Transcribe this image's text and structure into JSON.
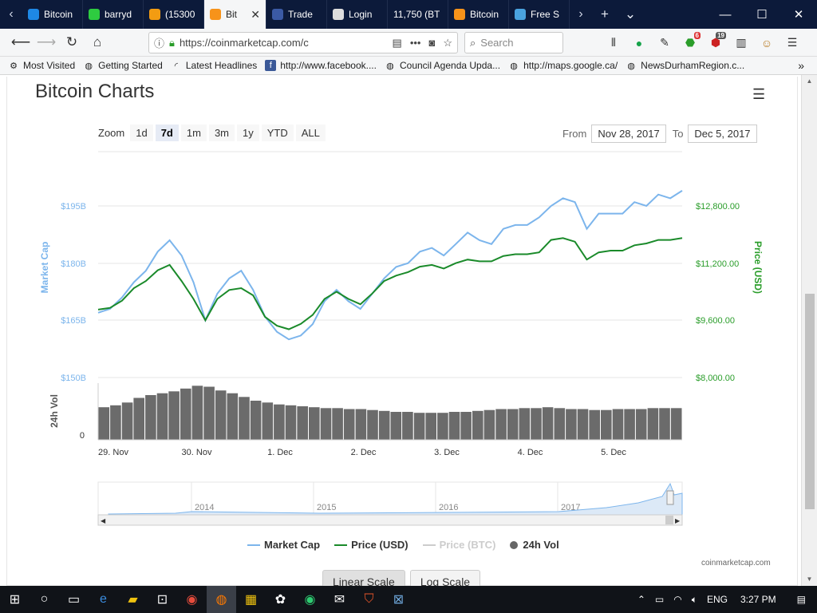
{
  "tabs": [
    {
      "label": "Bitcoin",
      "icon": "feather-icon",
      "color": "#1e88e5"
    },
    {
      "label": "barryd",
      "icon": "green-dot-icon",
      "color": "#2ecc40"
    },
    {
      "label": "(15300",
      "icon": "chat-icon",
      "color": "#f39c12"
    },
    {
      "label": "Bit",
      "icon": "bitcoin-icon",
      "color": "#f7931a",
      "active": true
    },
    {
      "label": "Trade",
      "icon": "bitcoin-b-icon",
      "color": "#3b5aa5"
    },
    {
      "label": "Login",
      "icon": "lock-icon",
      "color": "#ddd"
    },
    {
      "label": "11,750 (BT",
      "icon": "",
      "color": ""
    },
    {
      "label": "Bitcoin",
      "icon": "chart-icon",
      "color": "#f7931a"
    },
    {
      "label": "Free S",
      "icon": "graph-icon",
      "color": "#4aa3df"
    }
  ],
  "nav": {
    "url": "https://coinmarketcap.com/c",
    "search_placeholder": "Search",
    "badge_red": "6",
    "badge_abp": "19"
  },
  "bookmarks": [
    {
      "label": "Most Visited",
      "icon": "gear-icon"
    },
    {
      "label": "Getting Started",
      "icon": "globe-icon"
    },
    {
      "label": "Latest Headlines",
      "icon": "rss-icon"
    },
    {
      "label": "http://www.facebook....",
      "icon": "facebook-icon"
    },
    {
      "label": "Council Agenda Upda...",
      "icon": "globe-icon"
    },
    {
      "label": "http://maps.google.ca/",
      "icon": "globe-icon"
    },
    {
      "label": "NewsDurhamRegion.c...",
      "icon": "globe-icon"
    }
  ],
  "page": {
    "title": "Bitcoin Charts",
    "zoom_label": "Zoom",
    "zoom_options": [
      "1d",
      "7d",
      "1m",
      "3m",
      "1y",
      "YTD",
      "ALL"
    ],
    "zoom_selected": "7d",
    "from_label": "From",
    "from_value": "Nov 28, 2017",
    "to_label": "To",
    "to_value": "Dec 5, 2017",
    "credit": "coinmarketcap.com",
    "scale_buttons": [
      "Linear Scale",
      "Log Scale"
    ]
  },
  "chart_data": {
    "type": "line",
    "left_axis": {
      "label": "Market Cap",
      "ticks": [
        "$195B",
        "$180B",
        "$165B",
        "$150B"
      ],
      "color": "#7cb5ec"
    },
    "right_axis": {
      "label": "Price (USD)",
      "ticks": [
        "$12,800.00",
        "$11,200.00",
        "$9,600.00",
        "$8,000.00"
      ],
      "color": "#2a9d2a"
    },
    "volume_axis": {
      "label": "24h Vol",
      "ticks": [
        "0"
      ]
    },
    "x_ticks": [
      "29. Nov",
      "30. Nov",
      "1. Dec",
      "2. Dec",
      "3. Dec",
      "4. Dec",
      "5. Dec"
    ],
    "navigator_ticks": [
      "2014",
      "2015",
      "2016",
      "2017"
    ],
    "series": [
      {
        "name": "Market Cap",
        "color": "#7cb5ec",
        "values": [
          167,
          168,
          171,
          175,
          178,
          183,
          186,
          182,
          175,
          165,
          172,
          176,
          178,
          173,
          166,
          162,
          160,
          161,
          164,
          170,
          173,
          170,
          168,
          172,
          176,
          179,
          180,
          183,
          184,
          182,
          185,
          188,
          186,
          185,
          189,
          190,
          190,
          192,
          195,
          197,
          196,
          189,
          193,
          193,
          193,
          196,
          195,
          198,
          197,
          199
        ]
      },
      {
        "name": "Price (USD)",
        "color": "#1a8a2a",
        "values": [
          9900,
          9950,
          10150,
          10500,
          10700,
          11000,
          11150,
          10700,
          10200,
          9600,
          10200,
          10450,
          10500,
          10300,
          9700,
          9450,
          9350,
          9500,
          9750,
          10200,
          10400,
          10200,
          10050,
          10350,
          10700,
          10850,
          10950,
          11100,
          11150,
          11050,
          11200,
          11300,
          11250,
          11250,
          11400,
          11450,
          11450,
          11500,
          11850,
          11900,
          11800,
          11300,
          11500,
          11550,
          11550,
          11700,
          11750,
          11850,
          11850,
          11900
        ]
      },
      {
        "name": "24h Vol",
        "color": "#6b6b6b",
        "values": [
          35,
          37,
          40,
          45,
          48,
          50,
          52,
          55,
          58,
          57,
          53,
          50,
          46,
          42,
          40,
          38,
          37,
          36,
          35,
          34,
          34,
          33,
          33,
          32,
          31,
          30,
          30,
          29,
          29,
          29,
          30,
          30,
          31,
          32,
          33,
          33,
          34,
          34,
          35,
          34,
          33,
          33,
          32,
          32,
          33,
          33,
          33,
          34,
          34,
          34
        ]
      }
    ],
    "legend": [
      {
        "label": "Market Cap",
        "color": "#7cb5ec",
        "kind": "line"
      },
      {
        "label": "Price (USD)",
        "color": "#1a8a2a",
        "kind": "line"
      },
      {
        "label": "Price (BTC)",
        "color": "#cccccc",
        "kind": "line",
        "disabled": true
      },
      {
        "label": "24h Vol",
        "color": "#666666",
        "kind": "dot"
      }
    ]
  },
  "taskbar": {
    "time": "3:27 PM",
    "lang": "ENG"
  }
}
